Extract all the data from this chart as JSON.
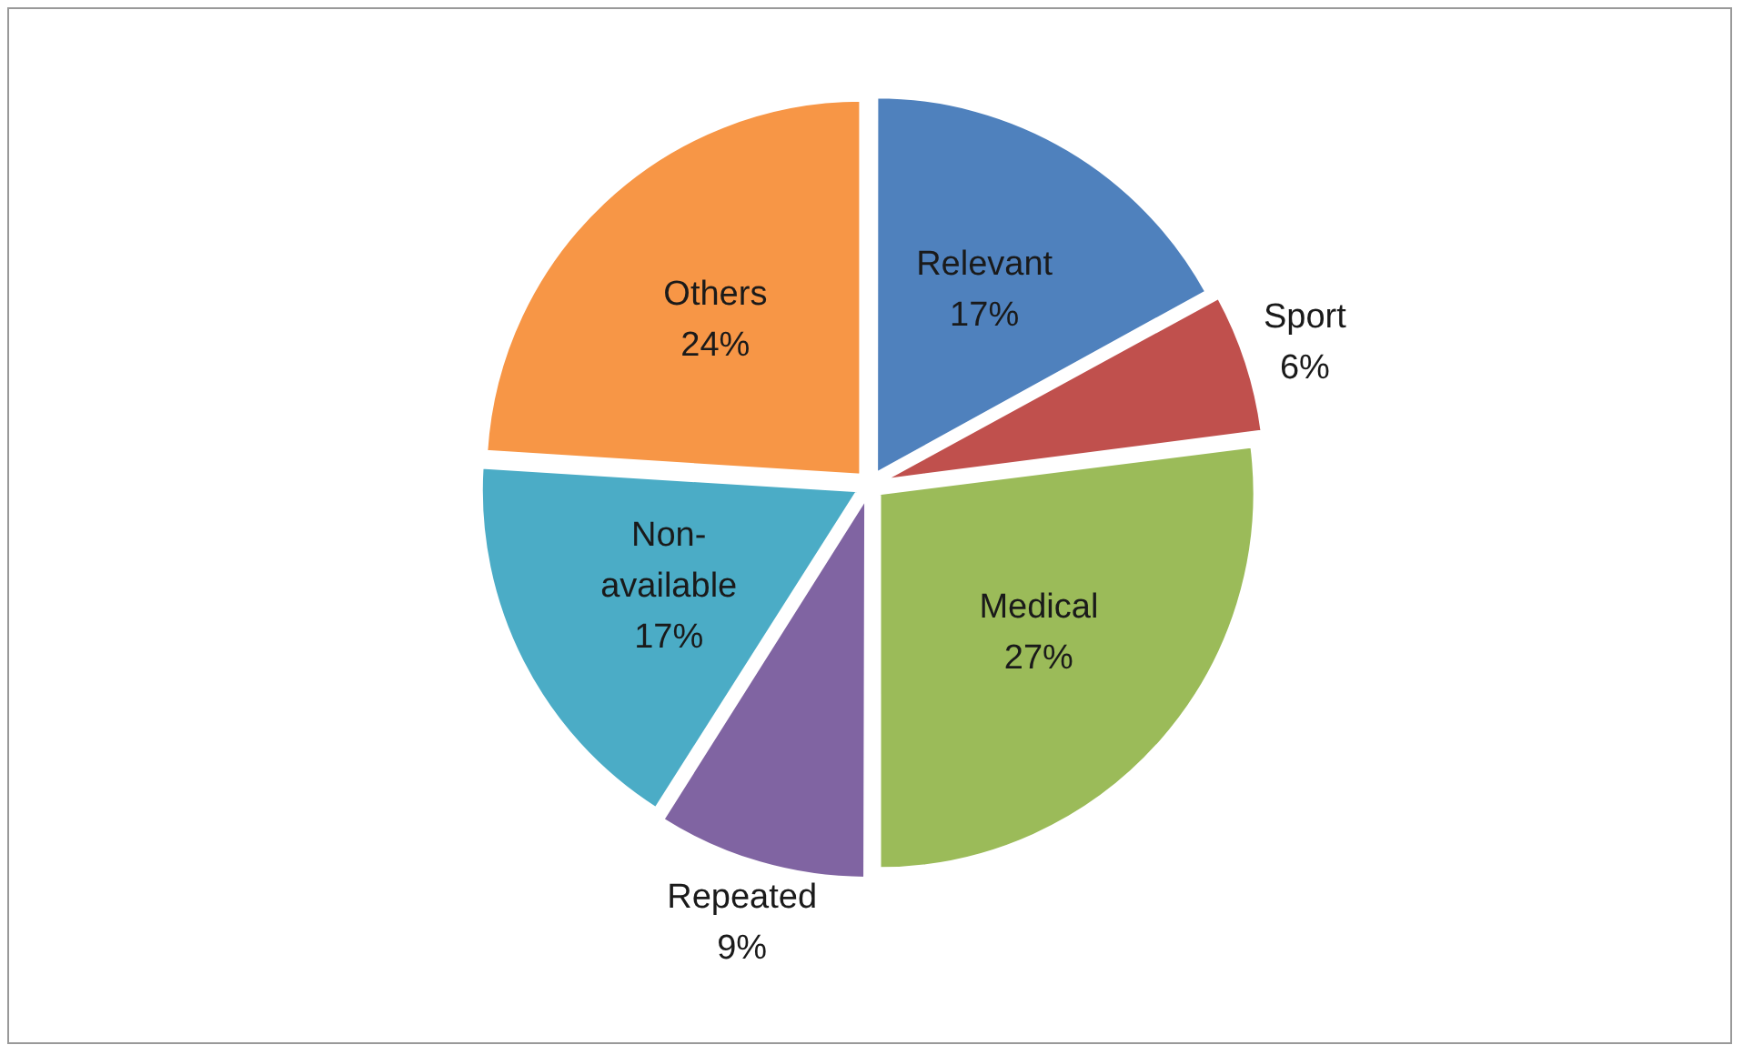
{
  "chart_data": {
    "type": "pie",
    "categories": [
      "Relevant",
      "Sport",
      "Medical",
      "Repeated",
      "Non-available",
      "Others"
    ],
    "values": [
      17,
      6,
      27,
      9,
      17,
      24
    ],
    "colors": [
      "#4f81bd",
      "#c0504d",
      "#9bbb59",
      "#8064a2",
      "#4bacc6",
      "#f79646"
    ],
    "value_labels": [
      "17%",
      "6%",
      "27%",
      "9%",
      "17%",
      "24%"
    ],
    "legend": false
  }
}
